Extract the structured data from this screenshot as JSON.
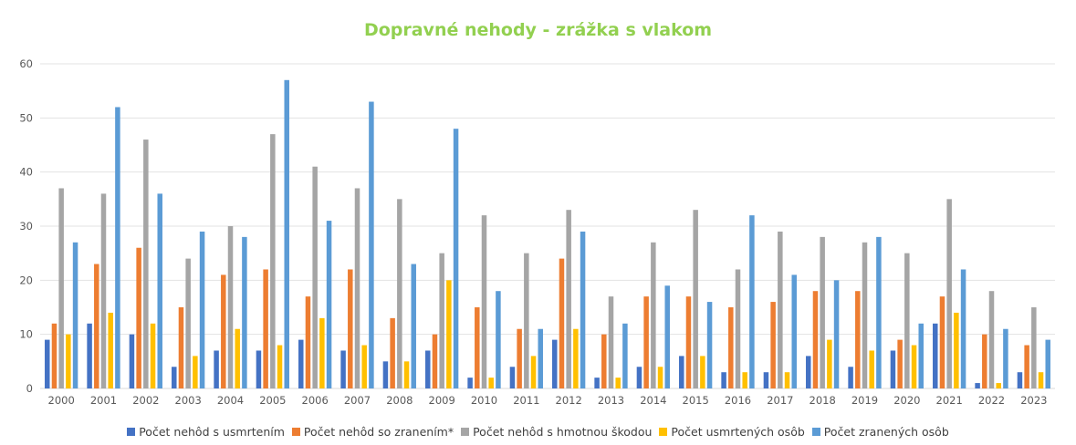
{
  "chart_data": {
    "type": "bar",
    "title": "Dopravné nehody  - zrážka s vlakom",
    "categories": [
      "2000",
      "2001",
      "2002",
      "2003",
      "2004",
      "2005",
      "2006",
      "2007",
      "2008",
      "2009",
      "2010",
      "2011",
      "2012",
      "2013",
      "2014",
      "2015",
      "2016",
      "2017",
      "2018",
      "2019",
      "2020",
      "2021",
      "2022",
      "2023"
    ],
    "series": [
      {
        "name": "Počet nehôd  s usmrtením",
        "color": "#4472c4",
        "values": [
          9,
          12,
          10,
          4,
          7,
          7,
          9,
          7,
          5,
          7,
          2,
          4,
          9,
          2,
          4,
          6,
          3,
          3,
          6,
          4,
          7,
          12,
          1,
          3
        ]
      },
      {
        "name": "Počet nehôd so zranením*",
        "color": "#ed7d31",
        "values": [
          12,
          23,
          26,
          15,
          21,
          22,
          17,
          22,
          13,
          10,
          15,
          11,
          24,
          10,
          17,
          17,
          15,
          16,
          18,
          18,
          9,
          17,
          10,
          8
        ]
      },
      {
        "name": "Počet nehôd s hmotnou škodou",
        "color": "#a5a5a5",
        "values": [
          37,
          36,
          46,
          24,
          30,
          47,
          41,
          37,
          35,
          25,
          32,
          25,
          33,
          17,
          27,
          33,
          22,
          29,
          28,
          27,
          25,
          35,
          18,
          15
        ]
      },
      {
        "name": "Počet usmrtených osôb",
        "color": "#ffc000",
        "values": [
          10,
          14,
          12,
          6,
          11,
          8,
          13,
          8,
          5,
          20,
          2,
          6,
          11,
          2,
          4,
          6,
          3,
          3,
          9,
          7,
          8,
          14,
          1,
          3
        ]
      },
      {
        "name": "Počet zranených osôb",
        "color": "#5b9bd5",
        "values": [
          27,
          52,
          36,
          29,
          28,
          57,
          31,
          53,
          23,
          48,
          18,
          11,
          29,
          12,
          19,
          16,
          32,
          21,
          20,
          28,
          12,
          22,
          11,
          9
        ]
      }
    ],
    "yticks": [
      "0",
      "10",
      "20",
      "30",
      "40",
      "50",
      "60"
    ],
    "ylim": [
      0,
      60
    ],
    "xlabel": "",
    "ylabel": "",
    "grid": true,
    "legend": "bottom"
  }
}
